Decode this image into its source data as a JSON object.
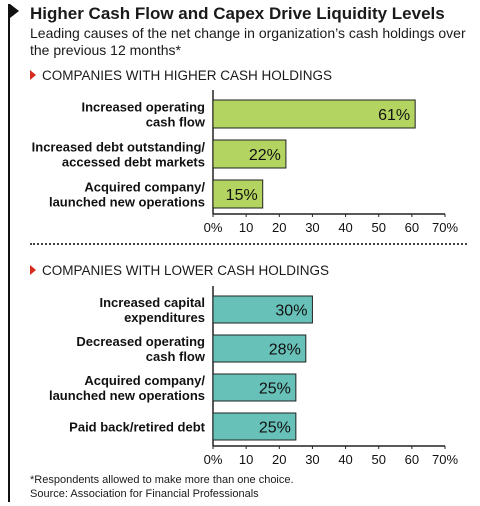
{
  "title": "Higher Cash Flow and Capex Drive Liquidity Levels",
  "subtitle": "Leading causes of the net change in organization’s cash holdings over the previous 12 months*",
  "footnote": "*Respondents allowed to make more than one choice.",
  "source": "Source: Association for Financial Professionals",
  "colors": {
    "higher": "#b3d461",
    "lower": "#67c1b8",
    "marker": "#d52b1e"
  },
  "chart_data": [
    {
      "type": "bar",
      "orientation": "horizontal",
      "title": "COMPANIES WITH HIGHER CASH HOLDINGS",
      "categories": [
        [
          "Increased operating",
          "cash flow"
        ],
        [
          "Increased debt outstanding/",
          "accessed debt markets"
        ],
        [
          "Acquired company/",
          "launched new operations"
        ]
      ],
      "values": [
        61,
        22,
        15
      ],
      "value_labels": [
        "61%",
        "22%",
        "15%"
      ],
      "xlim": [
        0,
        70
      ],
      "xticks": [
        "0%",
        "10",
        "20",
        "30",
        "40",
        "50",
        "60",
        "70%"
      ],
      "grid": false
    },
    {
      "type": "bar",
      "orientation": "horizontal",
      "title": "COMPANIES WITH LOWER CASH HOLDINGS",
      "categories": [
        [
          "Increased capital",
          "expenditures"
        ],
        [
          "Decreased operating",
          "cash flow"
        ],
        [
          "Acquired company/",
          "launched new operations"
        ],
        [
          "Paid back/retired debt"
        ]
      ],
      "values": [
        30,
        28,
        25,
        25
      ],
      "value_labels": [
        "30%",
        "28%",
        "25%",
        "25%"
      ],
      "xlim": [
        0,
        70
      ],
      "xticks": [
        "0%",
        "10",
        "20",
        "30",
        "40",
        "50",
        "60",
        "70%"
      ],
      "grid": false
    }
  ]
}
